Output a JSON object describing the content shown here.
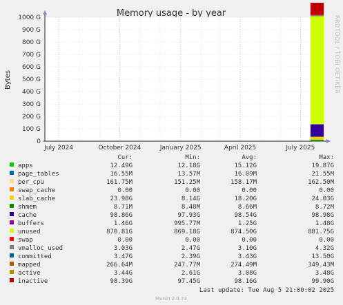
{
  "chart_data": {
    "type": "area",
    "title": "Memory usage - by year",
    "ylabel": "Bytes",
    "ylim": [
      0,
      1000
    ],
    "y_ticks": [
      "0",
      "100 G",
      "200 G",
      "300 G",
      "400 G",
      "500 G",
      "600 G",
      "700 G",
      "800 G",
      "900 G",
      "1000 G"
    ],
    "x_ticks": [
      "July 2024",
      "October 2024",
      "January 2025",
      "April 2025",
      "July 2025"
    ],
    "x_tick_positions": [
      "2024-07-01",
      "2024-10-01",
      "2025-01-01",
      "2025-04-01",
      "2025-07-01"
    ],
    "x_range": [
      "2024-06-10",
      "2025-08-05"
    ],
    "data_start": "2025-07-16",
    "grid": true,
    "legend_position": "below",
    "side_label": "RRDTOOL / TOBI OETIKER",
    "columns": [
      "Cur:",
      "Min:",
      "Avg:",
      "Max:"
    ],
    "series": [
      {
        "name": "apps",
        "color": "#00cc00",
        "cur": "12.49G",
        "min": "12.18G",
        "avg": "15.12G",
        "max": "19.87G",
        "value": 12.49
      },
      {
        "name": "page_tables",
        "color": "#0066b3",
        "cur": "16.55M",
        "min": "13.57M",
        "avg": "16.09M",
        "max": "21.55M",
        "value": 0.02
      },
      {
        "name": "per_cpu",
        "color": "#ffe080",
        "cur": "161.75M",
        "min": "151.25M",
        "avg": "158.17M",
        "max": "162.50M",
        "value": 0.16
      },
      {
        "name": "swap_cache",
        "color": "#ff8000",
        "cur": "0.00",
        "min": "0.00",
        "avg": "0.00",
        "max": "0.00",
        "value": 0
      },
      {
        "name": "slab_cache",
        "color": "#ffcc00",
        "cur": "23.98G",
        "min": "8.14G",
        "avg": "18.20G",
        "max": "24.03G",
        "value": 23.98
      },
      {
        "name": "shmem",
        "color": "#008f00",
        "cur": "8.71M",
        "min": "8.48M",
        "avg": "8.66M",
        "max": "8.72M",
        "value": 0.01
      },
      {
        "name": "cache",
        "color": "#330099",
        "cur": "98.86G",
        "min": "97.93G",
        "avg": "98.54G",
        "max": "98.98G",
        "value": 98.86
      },
      {
        "name": "buffers",
        "color": "#990099",
        "cur": "1.46G",
        "min": "995.77M",
        "avg": "1.25G",
        "max": "1.48G",
        "value": 1.46
      },
      {
        "name": "unused",
        "color": "#ccff00",
        "cur": "870.81G",
        "min": "869.18G",
        "avg": "874.50G",
        "max": "881.75G",
        "value": 870.81
      },
      {
        "name": "swap",
        "color": "#ff0000",
        "cur": "0.00",
        "min": "0.00",
        "avg": "0.00",
        "max": "0.00",
        "value": 0
      },
      {
        "name": "vmalloc_used",
        "color": "#808080",
        "cur": "3.03G",
        "min": "2.47G",
        "avg": "3.10G",
        "max": "4.32G",
        "value": 3.03
      },
      {
        "name": "committed",
        "color": "#005c8c",
        "cur": "3.47G",
        "min": "2.39G",
        "avg": "3.43G",
        "max": "13.50G",
        "value": 3.47
      },
      {
        "name": "mapped",
        "color": "#b35a00",
        "cur": "266.64M",
        "min": "247.77M",
        "avg": "274.49M",
        "max": "349.43M",
        "value": 0.27
      },
      {
        "name": "active",
        "color": "#b38f00",
        "cur": "3.44G",
        "min": "2.61G",
        "avg": "3.08G",
        "max": "3.48G",
        "value": 3.44
      },
      {
        "name": "inactive",
        "color": "#bf0000",
        "cur": "98.39G",
        "min": "97.45G",
        "avg": "98.16G",
        "max": "99.90G",
        "value": 98.39
      }
    ],
    "last_update": "Last update:  Tue Aug  5 21:00:02 2025",
    "footer": "Munin 2.0.73"
  }
}
